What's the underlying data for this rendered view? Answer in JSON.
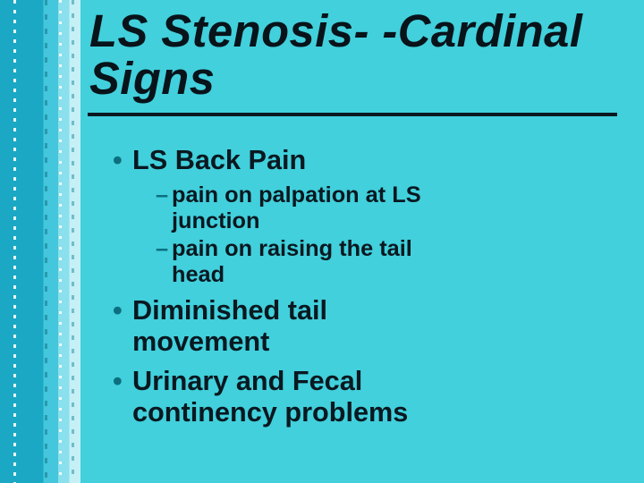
{
  "slide": {
    "background_color": "#41d0dc",
    "accent_gradient_colors": [
      "#1aa8c4",
      "#44c6dd",
      "#8ae0ec",
      "#c4f0f6"
    ],
    "title": {
      "text": "LS Stenosis- -Cardinal Signs",
      "font_size_pt": 38,
      "font_weight": "bold",
      "font_style": "italic",
      "text_color": "#08131a",
      "shadow_color": "#0c6f80",
      "underline_color": "#0a1820",
      "font_family": "Comic Sans MS"
    },
    "body": {
      "text_color": "#0a1820",
      "bullet_color": "#0c6f80",
      "font_family": "Comic Sans MS",
      "level1_font_size_pt": 23,
      "level2_font_size_pt": 19,
      "items": [
        {
          "text": "LS Back Pain",
          "subitems": [
            {
              "text": "pain on palpation at LS junction"
            },
            {
              "text": "pain on raising the tail head"
            }
          ]
        },
        {
          "text": "Diminished tail movement",
          "subitems": []
        },
        {
          "text": "Urinary and Fecal continency problems",
          "subitems": []
        }
      ]
    }
  }
}
